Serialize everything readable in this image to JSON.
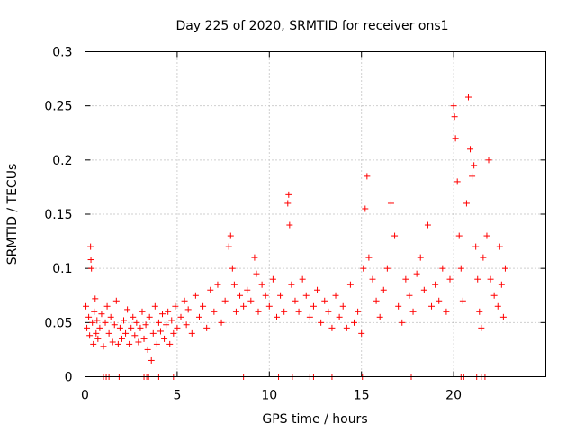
{
  "chart_data": {
    "type": "scatter",
    "title": "Day 225 of 2020, SRMTID for receiver ons1",
    "xlabel": "GPS time / hours",
    "ylabel": "SRMTID / TECUs",
    "xlim": [
      0,
      25
    ],
    "ylim": [
      0,
      0.3
    ],
    "x_ticks": [
      0,
      5,
      10,
      15,
      20
    ],
    "y_ticks": [
      0,
      0.05,
      0.1,
      0.15,
      0.2,
      0.25,
      0.3
    ],
    "x_tick_labels": [
      "0",
      "5",
      "10",
      "15",
      "20"
    ],
    "y_tick_labels": [
      "0",
      "0.05",
      "0.1",
      "0.15",
      "0.2",
      "0.25",
      "0.3"
    ],
    "grid": true,
    "marker": "+",
    "marker_color": "#ff0000",
    "series": [
      {
        "name": "SRMTID",
        "points": [
          [
            0.05,
            0.065
          ],
          [
            0.1,
            0.045
          ],
          [
            0.2,
            0.055
          ],
          [
            0.25,
            0.038
          ],
          [
            0.3,
            0.12
          ],
          [
            0.32,
            0.108
          ],
          [
            0.35,
            0.1
          ],
          [
            0.4,
            0.05
          ],
          [
            0.45,
            0.03
          ],
          [
            0.5,
            0.06
          ],
          [
            0.55,
            0.072
          ],
          [
            0.6,
            0.04
          ],
          [
            0.65,
            0.052
          ],
          [
            0.7,
            0.035
          ],
          [
            0.8,
            0.045
          ],
          [
            0.9,
            0.058
          ],
          [
            1.0,
            0.028
          ],
          [
            1.1,
            0.05
          ],
          [
            1.2,
            0.065
          ],
          [
            1.3,
            0.04
          ],
          [
            1.4,
            0.055
          ],
          [
            1.5,
            0.032
          ],
          [
            1.6,
            0.048
          ],
          [
            1.7,
            0.07
          ],
          [
            1.8,
            0.03
          ],
          [
            1.9,
            0.045
          ],
          [
            2.0,
            0.035
          ],
          [
            2.1,
            0.052
          ],
          [
            2.2,
            0.04
          ],
          [
            2.3,
            0.062
          ],
          [
            2.4,
            0.03
          ],
          [
            2.5,
            0.045
          ],
          [
            2.6,
            0.055
          ],
          [
            2.7,
            0.038
          ],
          [
            2.8,
            0.05
          ],
          [
            2.9,
            0.032
          ],
          [
            3.0,
            0.045
          ],
          [
            3.1,
            0.06
          ],
          [
            3.2,
            0.035
          ],
          [
            3.3,
            0.048
          ],
          [
            3.4,
            0.025
          ],
          [
            3.5,
            0.055
          ],
          [
            3.6,
            0.015
          ],
          [
            3.7,
            0.04
          ],
          [
            3.8,
            0.065
          ],
          [
            3.9,
            0.03
          ],
          [
            4.0,
            0.05
          ],
          [
            4.1,
            0.042
          ],
          [
            4.2,
            0.058
          ],
          [
            4.3,
            0.035
          ],
          [
            4.4,
            0.048
          ],
          [
            4.5,
            0.06
          ],
          [
            4.6,
            0.03
          ],
          [
            4.7,
            0.052
          ],
          [
            4.8,
            0.04
          ],
          [
            4.9,
            0.065
          ],
          [
            5.0,
            0.045
          ],
          [
            5.2,
            0.055
          ],
          [
            5.4,
            0.07
          ],
          [
            5.5,
            0.048
          ],
          [
            5.6,
            0.062
          ],
          [
            5.8,
            0.04
          ],
          [
            6.0,
            0.075
          ],
          [
            6.2,
            0.055
          ],
          [
            6.4,
            0.065
          ],
          [
            6.6,
            0.045
          ],
          [
            6.8,
            0.08
          ],
          [
            7.0,
            0.06
          ],
          [
            7.2,
            0.085
          ],
          [
            7.4,
            0.05
          ],
          [
            7.6,
            0.07
          ],
          [
            7.8,
            0.12
          ],
          [
            7.9,
            0.13
          ],
          [
            8.0,
            0.1
          ],
          [
            8.1,
            0.085
          ],
          [
            8.2,
            0.06
          ],
          [
            8.4,
            0.075
          ],
          [
            8.6,
            0.065
          ],
          [
            8.8,
            0.08
          ],
          [
            9.0,
            0.07
          ],
          [
            9.2,
            0.11
          ],
          [
            9.3,
            0.095
          ],
          [
            9.4,
            0.06
          ],
          [
            9.6,
            0.085
          ],
          [
            9.8,
            0.075
          ],
          [
            10.0,
            0.065
          ],
          [
            10.2,
            0.09
          ],
          [
            10.4,
            0.055
          ],
          [
            10.6,
            0.075
          ],
          [
            10.8,
            0.06
          ],
          [
            11.0,
            0.16
          ],
          [
            11.05,
            0.168
          ],
          [
            11.1,
            0.14
          ],
          [
            11.2,
            0.085
          ],
          [
            11.4,
            0.07
          ],
          [
            11.6,
            0.06
          ],
          [
            11.8,
            0.09
          ],
          [
            12.0,
            0.075
          ],
          [
            12.2,
            0.055
          ],
          [
            12.4,
            0.065
          ],
          [
            12.6,
            0.08
          ],
          [
            12.8,
            0.05
          ],
          [
            13.0,
            0.07
          ],
          [
            13.2,
            0.06
          ],
          [
            13.4,
            0.045
          ],
          [
            13.6,
            0.075
          ],
          [
            13.8,
            0.055
          ],
          [
            14.0,
            0.065
          ],
          [
            14.2,
            0.045
          ],
          [
            14.4,
            0.085
          ],
          [
            14.6,
            0.05
          ],
          [
            14.8,
            0.06
          ],
          [
            15.0,
            0.04
          ],
          [
            15.1,
            0.1
          ],
          [
            15.2,
            0.155
          ],
          [
            15.3,
            0.185
          ],
          [
            15.4,
            0.11
          ],
          [
            15.6,
            0.09
          ],
          [
            15.8,
            0.07
          ],
          [
            16.0,
            0.055
          ],
          [
            16.2,
            0.08
          ],
          [
            16.4,
            0.1
          ],
          [
            16.6,
            0.16
          ],
          [
            16.8,
            0.13
          ],
          [
            17.0,
            0.065
          ],
          [
            17.2,
            0.05
          ],
          [
            17.4,
            0.09
          ],
          [
            17.6,
            0.075
          ],
          [
            17.8,
            0.06
          ],
          [
            18.0,
            0.095
          ],
          [
            18.2,
            0.11
          ],
          [
            18.4,
            0.08
          ],
          [
            18.6,
            0.14
          ],
          [
            18.8,
            0.065
          ],
          [
            19.0,
            0.085
          ],
          [
            19.2,
            0.07
          ],
          [
            19.4,
            0.1
          ],
          [
            19.6,
            0.06
          ],
          [
            19.8,
            0.09
          ],
          [
            20.0,
            0.25
          ],
          [
            20.05,
            0.24
          ],
          [
            20.1,
            0.22
          ],
          [
            20.2,
            0.18
          ],
          [
            20.3,
            0.13
          ],
          [
            20.4,
            0.1
          ],
          [
            20.5,
            0.07
          ],
          [
            20.7,
            0.16
          ],
          [
            20.8,
            0.258
          ],
          [
            20.9,
            0.21
          ],
          [
            21.0,
            0.185
          ],
          [
            21.1,
            0.195
          ],
          [
            21.2,
            0.12
          ],
          [
            21.3,
            0.09
          ],
          [
            21.4,
            0.06
          ],
          [
            21.5,
            0.045
          ],
          [
            21.6,
            0.11
          ],
          [
            21.8,
            0.13
          ],
          [
            21.9,
            0.2
          ],
          [
            22.0,
            0.09
          ],
          [
            22.2,
            0.075
          ],
          [
            22.4,
            0.065
          ],
          [
            22.5,
            0.12
          ],
          [
            22.6,
            0.085
          ],
          [
            22.7,
            0.055
          ],
          [
            22.8,
            0.1
          ]
        ],
        "near_zero_x": [
          1.0,
          1.15,
          1.3,
          1.85,
          3.2,
          3.35,
          3.45,
          4.0,
          4.8,
          8.6,
          10.5,
          11.25,
          12.2,
          12.4,
          13.4,
          15.05,
          17.7,
          20.4,
          20.55,
          21.25,
          21.5,
          21.7
        ]
      }
    ]
  }
}
